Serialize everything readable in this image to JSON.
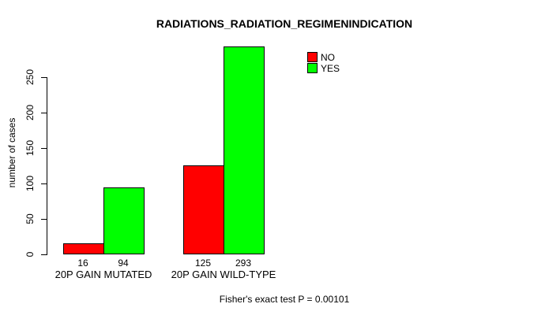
{
  "chart_data": {
    "type": "bar",
    "title": "RADIATIONS_RADIATION_REGIMENINDICATION",
    "ylabel": "number of cases",
    "xlabel": "",
    "categories": [
      "20P GAIN MUTATED",
      "20P GAIN WILD-TYPE"
    ],
    "series": [
      {
        "name": "NO",
        "color": "#FF0000",
        "values": [
          16,
          125
        ]
      },
      {
        "name": "YES",
        "color": "#00FF00",
        "values": [
          94,
          293
        ]
      }
    ],
    "bar_value_labels": [
      [
        "16",
        "94"
      ],
      [
        "125",
        "293"
      ]
    ],
    "yticks": [
      "0",
      "50",
      "100",
      "150",
      "200",
      "250"
    ],
    "ylim": [
      0,
      293
    ],
    "grid": false,
    "legend_position": "top-right",
    "annotation": "Fisher's exact test P = 0.00101",
    "colors": {
      "background": "#FFFFFF",
      "axis": "#000000",
      "text": "#000000"
    }
  }
}
